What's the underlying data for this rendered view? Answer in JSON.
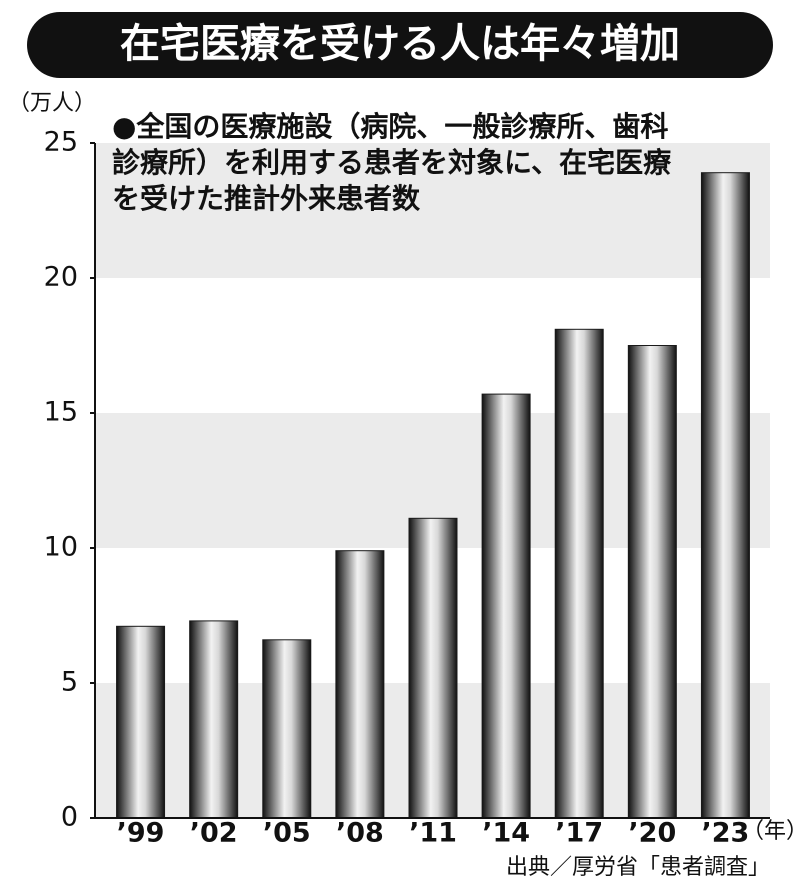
{
  "chart_data": {
    "type": "bar",
    "title": "在宅医療を受ける人は年々増加",
    "y_unit": "（万人）",
    "x_unit": "（年）",
    "annotation": [
      "●全国の医療施設（病院、一般診療所、歯科",
      "診療所）を利用する患者を対象に、在宅医療",
      "を受けた推計外来患者数"
    ],
    "source": "出典／厚労省「患者調査」",
    "categories": [
      "’99",
      "’02",
      "’05",
      "’08",
      "’11",
      "’14",
      "’17",
      "’20",
      "’23"
    ],
    "values": [
      7.1,
      7.3,
      6.6,
      9.9,
      11.1,
      15.7,
      18.1,
      17.5,
      23.9
    ],
    "color": "#1a1a1a",
    "ylim": [
      0,
      25
    ],
    "yticks": [
      0,
      5,
      10,
      15,
      20,
      25
    ],
    "grid": true
  }
}
